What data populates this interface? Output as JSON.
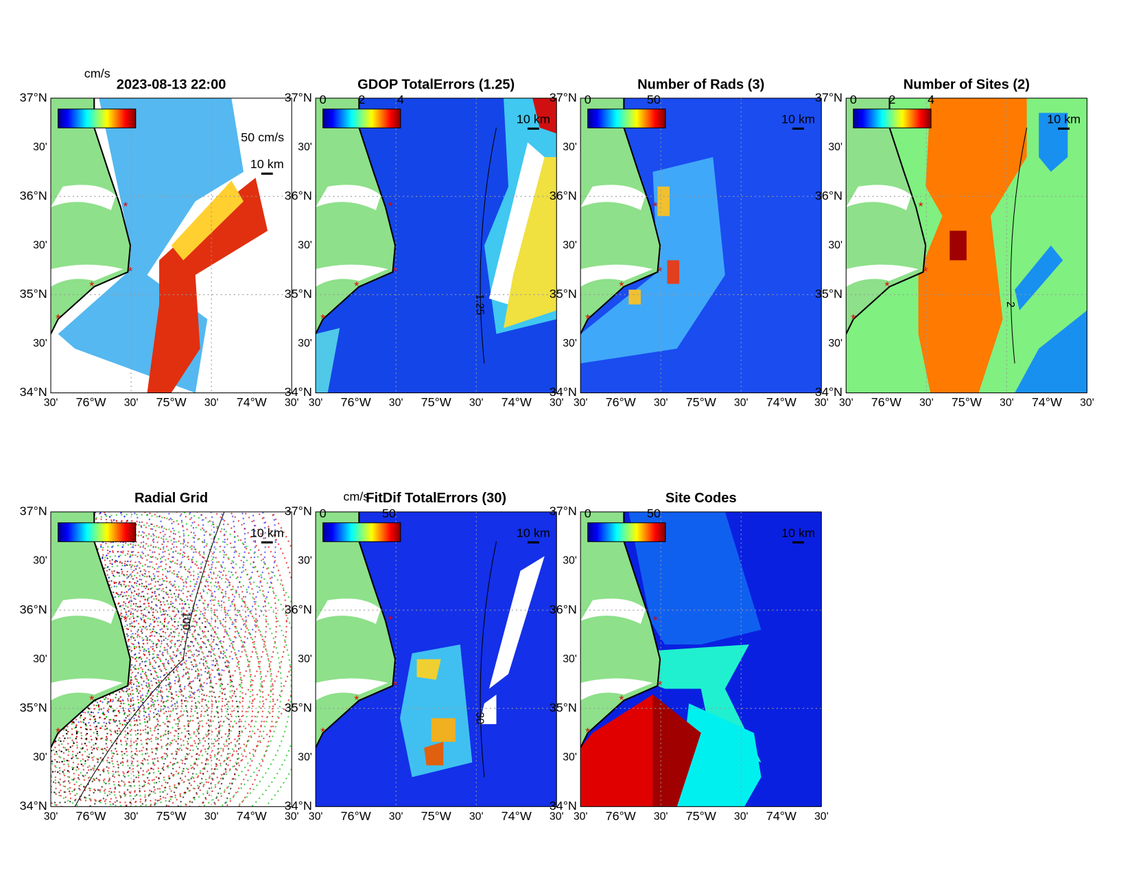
{
  "figure": {
    "lat_labels": [
      "37°N",
      "30'",
      "36°N",
      "30'",
      "35°N",
      "30'",
      "34°N"
    ],
    "lon_labels": [
      "30'",
      "76°W",
      "30'",
      "75°W",
      "30'",
      "74°W",
      "30'"
    ],
    "panels": [
      {
        "title": "2023-08-13 22:00",
        "units": "cm/s",
        "vector_scale": "50 cm/s",
        "scale_bar": "10 km"
      },
      {
        "title": "GDOP TotalErrors (1.25)",
        "colorbar_ticks": [
          0,
          2,
          4
        ],
        "scale_bar": "10 km",
        "contour_label": "1.25"
      },
      {
        "title": "Number of Rads (3)",
        "colorbar_ticks": [
          0,
          50
        ],
        "scale_bar": "10 km"
      },
      {
        "title": "Number of Sites (2)",
        "colorbar_ticks": [
          0,
          2,
          4
        ],
        "scale_bar": "10 km",
        "contour_label": "2"
      },
      {
        "title": "Radial Grid",
        "scale_bar": "10 km",
        "contour_label": "100"
      },
      {
        "title": "FitDif TotalErrors (30)",
        "units": "cm/s",
        "colorbar_ticks": [
          0,
          50
        ],
        "scale_bar": "10 km",
        "contour_label": "30"
      },
      {
        "title": "Site Codes",
        "colorbar_ticks": [
          0,
          50
        ],
        "scale_bar": "10 km"
      }
    ]
  }
}
